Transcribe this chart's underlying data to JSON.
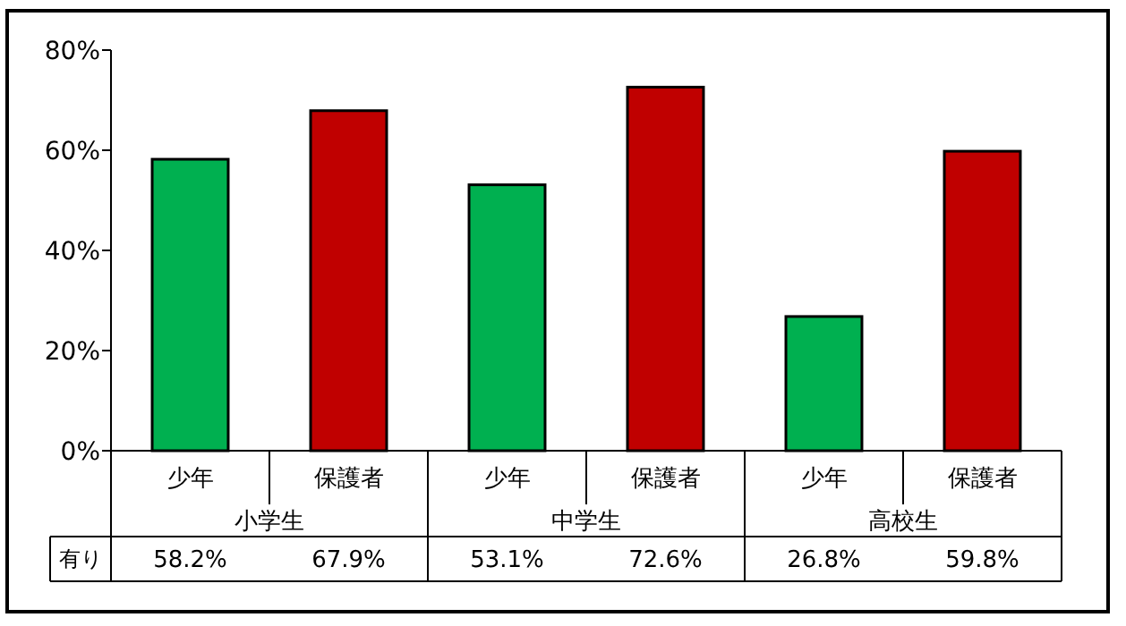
{
  "chart_data": {
    "type": "bar",
    "categories": [
      "少年",
      "保護者",
      "少年",
      "保護者",
      "少年",
      "保護者"
    ],
    "series": [
      {
        "name": "有り",
        "colors": [
          "#00b050",
          "#c00000",
          "#00b050",
          "#c00000",
          "#00b050",
          "#c00000"
        ],
        "values": [
          58.2,
          67.9,
          53.1,
          72.6,
          26.8,
          59.8
        ],
        "value_labels": [
          "58.2%",
          "67.9%",
          "53.1%",
          "72.6%",
          "26.8%",
          "59.8%"
        ]
      }
    ],
    "annotations": [
      "小学生",
      "中学生",
      "高校生"
    ],
    "ylim": [
      0,
      80
    ],
    "yticks": [
      {
        "value": 0,
        "label": "0%"
      },
      {
        "value": 20,
        "label": "20%"
      },
      {
        "value": 40,
        "label": "40%"
      },
      {
        "value": 60,
        "label": "60%"
      },
      {
        "value": 80,
        "label": "80%"
      }
    ],
    "data_labels": true,
    "grid": false
  }
}
